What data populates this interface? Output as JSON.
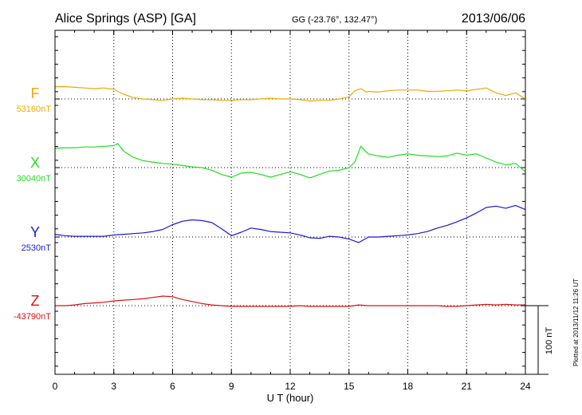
{
  "chart_data": {
    "type": "line",
    "title": "Alice Springs (ASP)  [GA]",
    "coordinates": "GG (-23.76°, 132.47°)",
    "date": "2013/06/06",
    "xlabel": "U T (hour)",
    "xlim": [
      0,
      24
    ],
    "xticks": [
      "0",
      "3",
      "6",
      "9",
      "12",
      "15",
      "18",
      "21",
      "24"
    ],
    "grid": true,
    "scale_bar_label": "100 nT",
    "plotted_note": "Plotted at 2013/11/12 11:26 UT",
    "series": [
      {
        "name": "F",
        "baseline_label": "53160nT",
        "baseline": 53160,
        "color": "#f0a800",
        "x": [
          0,
          0.5,
          1,
          1.5,
          2,
          2.5,
          3,
          3.5,
          4,
          4.5,
          5,
          5.5,
          6,
          6.5,
          7,
          7.5,
          8,
          8.5,
          9,
          9.5,
          10,
          10.5,
          11,
          11.5,
          12,
          12.5,
          13,
          13.5,
          14,
          14.5,
          15,
          15.3,
          15.6,
          15.9,
          16,
          16.5,
          17,
          17.5,
          18,
          18.5,
          19,
          19.5,
          20,
          20.5,
          21,
          21.5,
          22,
          22.5,
          23,
          23.5,
          24
        ],
        "values": [
          53178,
          53178,
          53177,
          53176,
          53175,
          53176,
          53174,
          53167,
          53162,
          53160,
          53159,
          53158,
          53160,
          53161,
          53160,
          53159,
          53159,
          53158,
          53158,
          53159,
          53159,
          53160,
          53161,
          53160,
          53160,
          53159,
          53157,
          53158,
          53158,
          53160,
          53163,
          53172,
          53175,
          53170,
          53171,
          53170,
          53172,
          53173,
          53173,
          53173,
          53171,
          53171,
          53172,
          53173,
          53172,
          53174,
          53176,
          53169,
          53165,
          53169,
          53160
        ]
      },
      {
        "name": "X",
        "baseline_label": "30040nT",
        "baseline": 30040,
        "color": "#22dd22",
        "x": [
          0,
          0.5,
          1,
          1.5,
          2,
          2.5,
          3,
          3.2,
          3.5,
          4,
          4.5,
          5,
          5.5,
          6,
          6.5,
          7,
          7.5,
          8,
          8.5,
          9,
          9.5,
          10,
          10.5,
          11,
          11.5,
          12,
          12.5,
          13,
          13.5,
          14,
          14.5,
          15,
          15.3,
          15.6,
          15.9,
          16,
          16.5,
          17,
          17.5,
          18,
          18.5,
          19,
          19.5,
          20,
          20.5,
          21,
          21.5,
          22,
          22.5,
          23,
          23.5,
          24
        ],
        "values": [
          30068,
          30069,
          30069,
          30070,
          30070,
          30071,
          30072,
          30075,
          30064,
          30055,
          30050,
          30048,
          30046,
          30045,
          30043,
          30041,
          30040,
          30036,
          30030,
          30026,
          30032,
          30033,
          30030,
          30026,
          30030,
          30034,
          30030,
          30025,
          30030,
          30035,
          30036,
          30040,
          30048,
          30071,
          30062,
          30060,
          30057,
          30055,
          30058,
          30060,
          30058,
          30057,
          30056,
          30057,
          30061,
          30058,
          30060,
          30054,
          30048,
          30044,
          30046,
          30034
        ]
      },
      {
        "name": "Y",
        "baseline_label": "2530nT",
        "baseline": 2530,
        "color": "#1818dd",
        "x": [
          0,
          0.5,
          1,
          1.5,
          2,
          2.5,
          3,
          3.5,
          4,
          4.5,
          5,
          5.5,
          6,
          6.5,
          7,
          7.5,
          8,
          8.5,
          9,
          9.5,
          10,
          10.5,
          11,
          11.5,
          12,
          12.5,
          13,
          13.5,
          14,
          14.5,
          15,
          15.5,
          16,
          16.5,
          17,
          17.5,
          18,
          18.5,
          19,
          19.5,
          20,
          20.5,
          21,
          21.5,
          22,
          22.5,
          23,
          23.5,
          24
        ],
        "values": [
          2534,
          2532,
          2531,
          2531,
          2531,
          2531,
          2533,
          2534,
          2535,
          2536,
          2538,
          2541,
          2548,
          2553,
          2555,
          2554,
          2551,
          2542,
          2532,
          2537,
          2543,
          2541,
          2538,
          2537,
          2536,
          2533,
          2529,
          2528,
          2531,
          2530,
          2527,
          2522,
          2530,
          2530,
          2531,
          2532,
          2533,
          2535,
          2538,
          2543,
          2547,
          2552,
          2558,
          2565,
          2573,
          2575,
          2572,
          2576,
          2570
        ]
      },
      {
        "name": "Z",
        "baseline_label": "-43790nT",
        "baseline": -43790,
        "color": "#dd1111",
        "x": [
          0,
          0.5,
          1,
          1.5,
          2,
          2.5,
          3,
          3.5,
          4,
          4.5,
          5,
          5.5,
          6,
          6.5,
          7,
          7.5,
          8,
          8.5,
          9,
          9.5,
          10,
          10.5,
          11,
          11.5,
          12,
          12.5,
          13,
          13.5,
          14,
          14.5,
          15,
          15.5,
          16,
          16.5,
          17,
          17.5,
          18,
          18.5,
          19,
          19.5,
          20,
          20.5,
          21,
          21.5,
          22,
          22.5,
          23,
          23.5,
          24
        ],
        "values": [
          -43790,
          -43790,
          -43789,
          -43787,
          -43786,
          -43785,
          -43783,
          -43782,
          -43781,
          -43780,
          -43778,
          -43776,
          -43777,
          -43781,
          -43784,
          -43787,
          -43789,
          -43790,
          -43791,
          -43791,
          -43791,
          -43791,
          -43791,
          -43791,
          -43791,
          -43790,
          -43791,
          -43791,
          -43791,
          -43791,
          -43791,
          -43789,
          -43790,
          -43790,
          -43790,
          -43790,
          -43790,
          -43790,
          -43790,
          -43790,
          -43791,
          -43791,
          -43790,
          -43789,
          -43788,
          -43789,
          -43788,
          -43789,
          -43789
        ]
      }
    ]
  }
}
